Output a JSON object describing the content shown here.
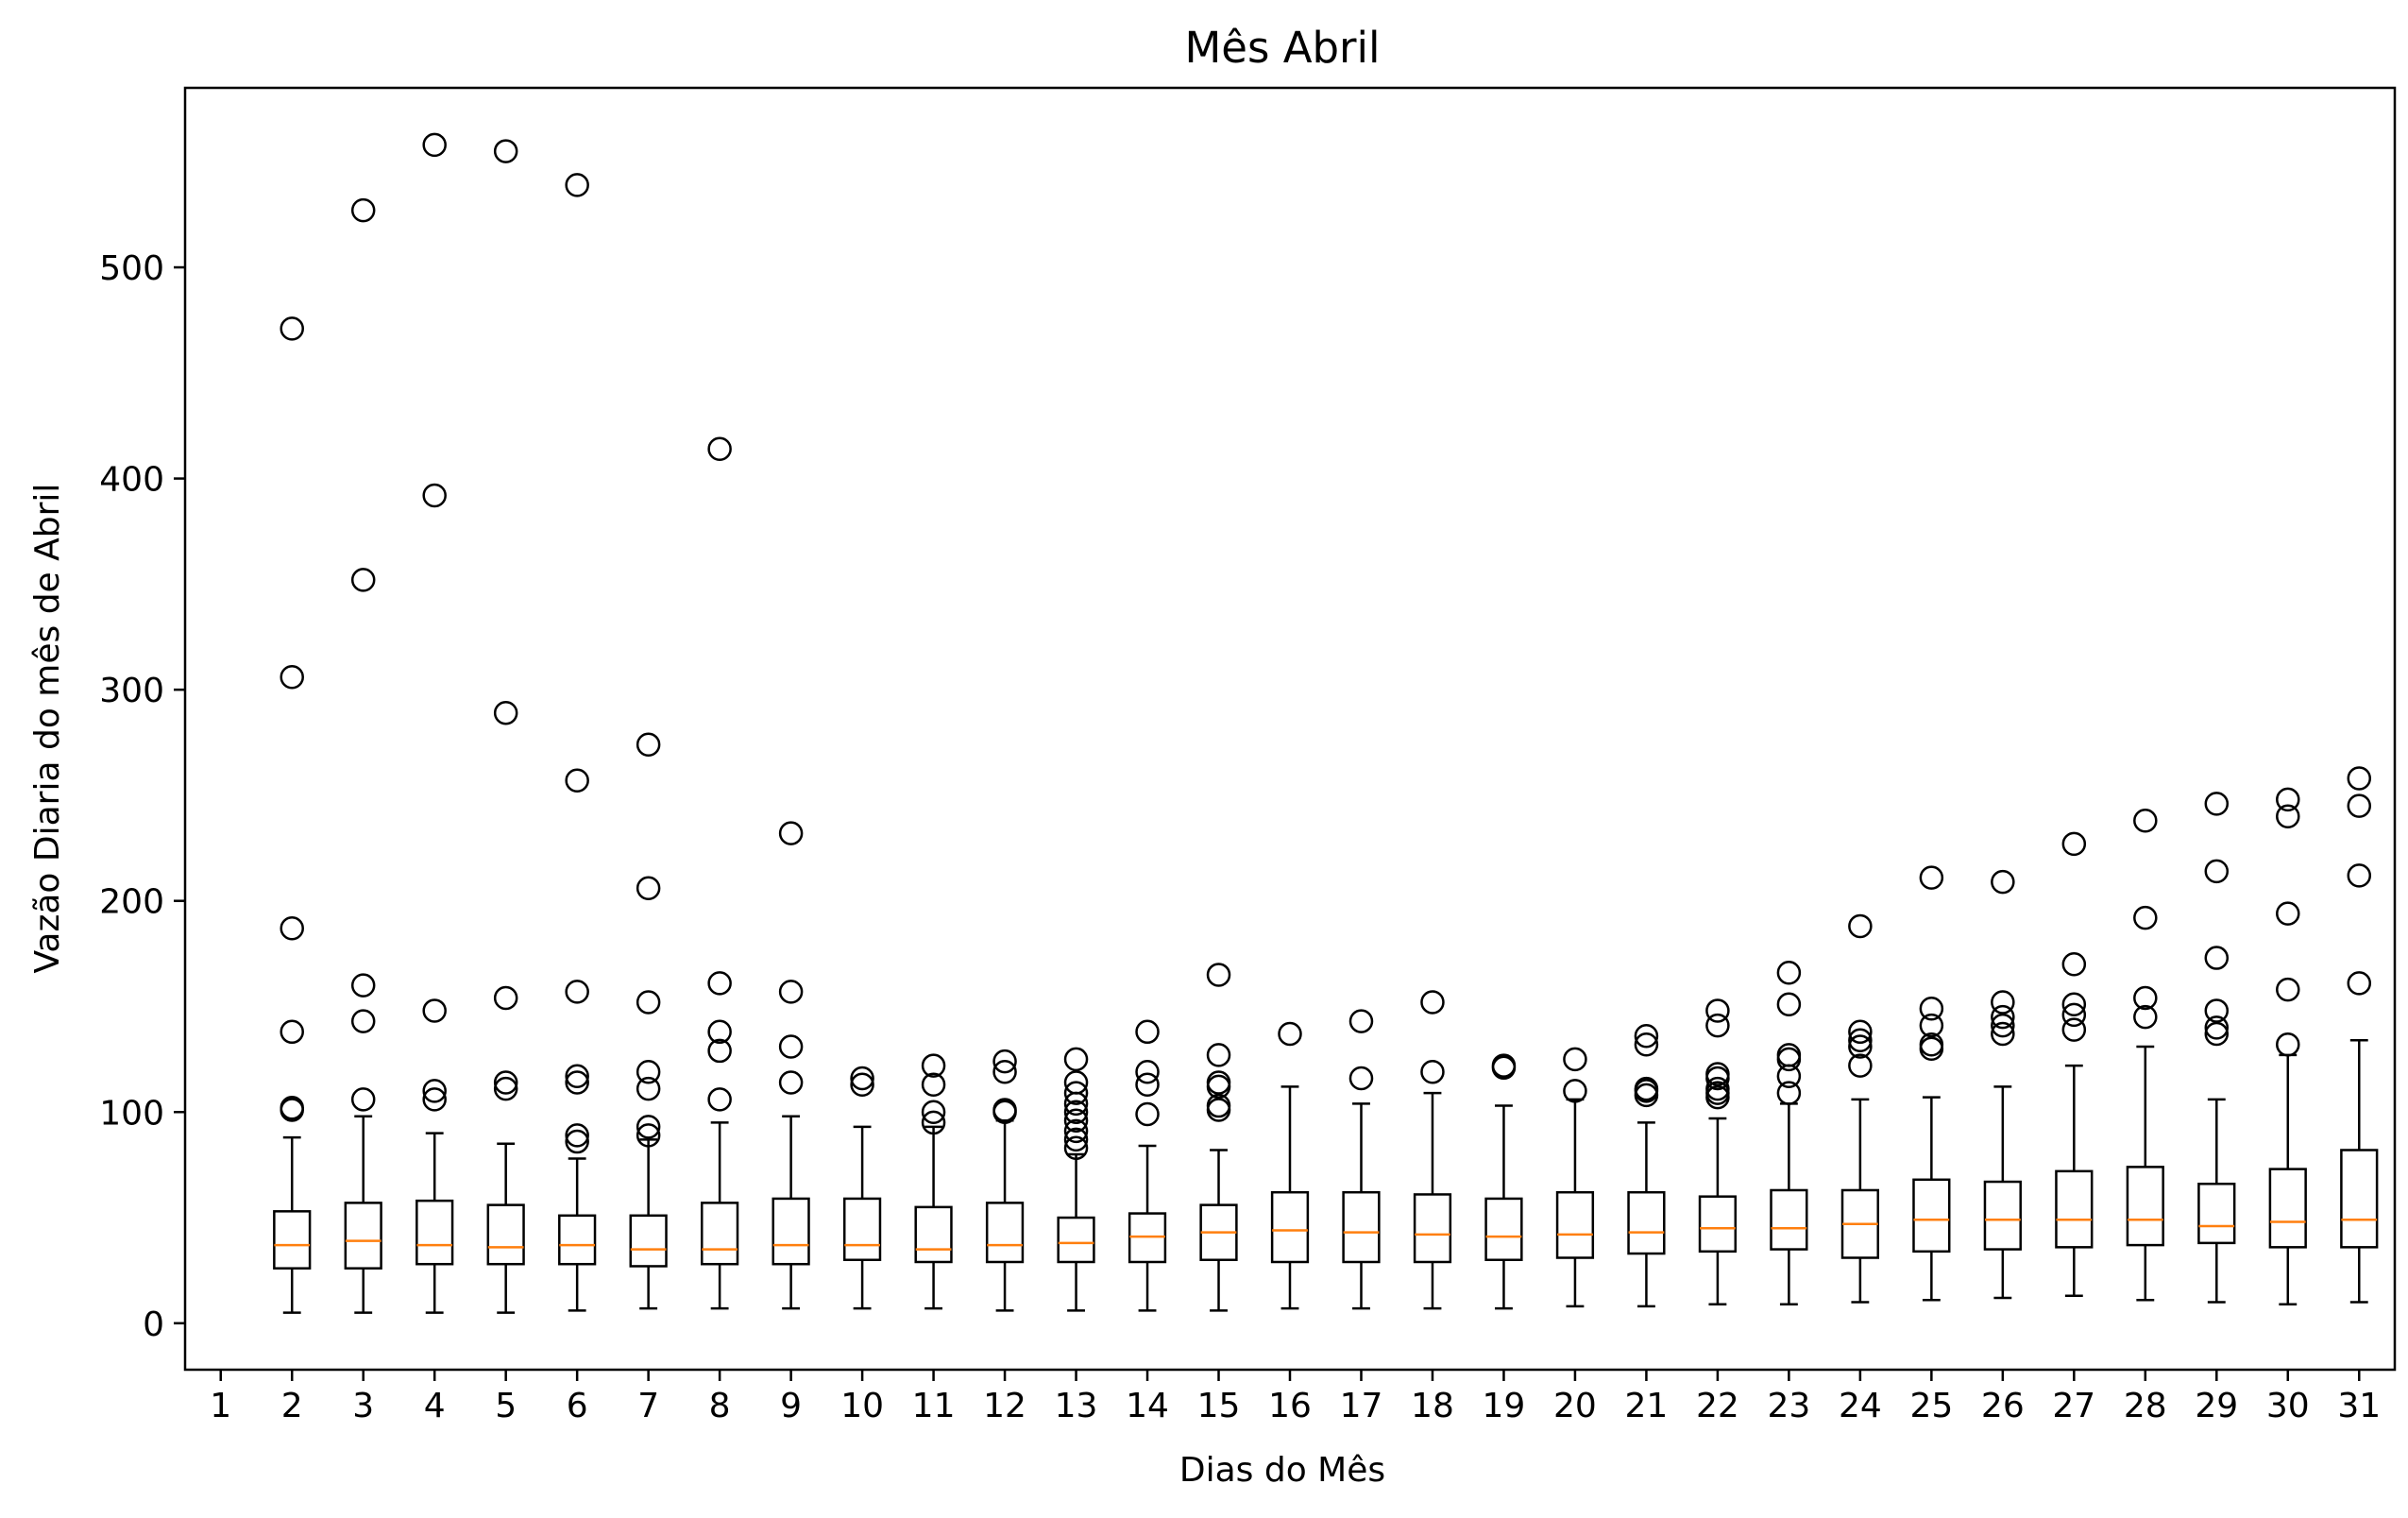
{
  "chart_data": {
    "type": "boxplot",
    "title": "Mês Abril",
    "xlabel": "Dias do Mês",
    "ylabel": "Vazão Diaria do mês de Abril",
    "xlim": [
      0.5,
      31.5
    ],
    "ylim": [
      -22,
      585
    ],
    "x_ticks": [
      "1",
      "2",
      "3",
      "4",
      "5",
      "6",
      "7",
      "8",
      "9",
      "10",
      "11",
      "12",
      "13",
      "14",
      "15",
      "16",
      "17",
      "18",
      "19",
      "20",
      "21",
      "22",
      "23",
      "24",
      "25",
      "26",
      "27",
      "28",
      "29",
      "30",
      "31"
    ],
    "y_ticks": [
      0,
      100,
      200,
      300,
      400,
      500
    ],
    "grid": false,
    "legend": "none",
    "colors": {
      "box": "#000000",
      "median": "#ff7f0e",
      "flier": "#000000"
    },
    "boxes": [
      {
        "day": 2,
        "whislo": 5,
        "q1": 26,
        "median": 37,
        "q3": 53,
        "whishi": 88,
        "fliers": [
          101,
          102,
          138,
          187,
          306,
          471
        ]
      },
      {
        "day": 3,
        "whislo": 5,
        "q1": 26,
        "median": 39,
        "q3": 57,
        "whishi": 98,
        "fliers": [
          106,
          143,
          160,
          352,
          527
        ]
      },
      {
        "day": 4,
        "whislo": 5,
        "q1": 28,
        "median": 37,
        "q3": 58,
        "whishi": 90,
        "fliers": [
          106,
          110,
          148,
          392,
          558
        ]
      },
      {
        "day": 5,
        "whislo": 5,
        "q1": 28,
        "median": 36,
        "q3": 56,
        "whishi": 85,
        "fliers": [
          111,
          114,
          154,
          289,
          555
        ]
      },
      {
        "day": 6,
        "whislo": 6,
        "q1": 28,
        "median": 37,
        "q3": 51,
        "whishi": 78,
        "fliers": [
          86,
          89,
          114,
          117,
          157,
          257,
          539
        ]
      },
      {
        "day": 7,
        "whislo": 7,
        "q1": 27,
        "median": 35,
        "q3": 51,
        "whishi": 87,
        "fliers": [
          89,
          93,
          111,
          119,
          152,
          206,
          274
        ]
      },
      {
        "day": 8,
        "whislo": 7,
        "q1": 28,
        "median": 35,
        "q3": 57,
        "whishi": 95,
        "fliers": [
          106,
          129,
          138,
          161,
          414
        ]
      },
      {
        "day": 9,
        "whislo": 7,
        "q1": 28,
        "median": 37,
        "q3": 59,
        "whishi": 98,
        "fliers": [
          114,
          131,
          157,
          232
        ]
      },
      {
        "day": 10,
        "whislo": 7,
        "q1": 30,
        "median": 37,
        "q3": 59,
        "whishi": 93,
        "fliers": [
          113,
          116
        ]
      },
      {
        "day": 11,
        "whislo": 7,
        "q1": 29,
        "median": 35,
        "q3": 55,
        "whishi": 93,
        "fliers": [
          95,
          100,
          113,
          122
        ]
      },
      {
        "day": 12,
        "whislo": 6,
        "q1": 29,
        "median": 37,
        "q3": 57,
        "whishi": 96,
        "fliers": [
          100,
          101,
          119,
          124
        ]
      },
      {
        "day": 13,
        "whislo": 6,
        "q1": 29,
        "median": 38,
        "q3": 50,
        "whishi": 80,
        "fliers": [
          83,
          87,
          91,
          96,
          100,
          104,
          109,
          114,
          125
        ]
      },
      {
        "day": 14,
        "whislo": 6,
        "q1": 29,
        "median": 41,
        "q3": 52,
        "whishi": 84,
        "fliers": [
          99,
          113,
          119,
          138
        ]
      },
      {
        "day": 15,
        "whislo": 6,
        "q1": 30,
        "median": 43,
        "q3": 56,
        "whishi": 82,
        "fliers": [
          101,
          103,
          112,
          114,
          127,
          165
        ]
      },
      {
        "day": 16,
        "whislo": 7,
        "q1": 29,
        "median": 44,
        "q3": 62,
        "whishi": 112,
        "fliers": [
          137
        ]
      },
      {
        "day": 17,
        "whislo": 7,
        "q1": 29,
        "median": 43,
        "q3": 62,
        "whishi": 104,
        "fliers": [
          116,
          143
        ]
      },
      {
        "day": 18,
        "whislo": 7,
        "q1": 29,
        "median": 42,
        "q3": 61,
        "whishi": 109,
        "fliers": [
          119,
          152
        ]
      },
      {
        "day": 19,
        "whislo": 7,
        "q1": 30,
        "median": 41,
        "q3": 59,
        "whishi": 103,
        "fliers": [
          121,
          122
        ]
      },
      {
        "day": 20,
        "whislo": 8,
        "q1": 31,
        "median": 42,
        "q3": 62,
        "whishi": 106,
        "fliers": [
          110,
          125
        ]
      },
      {
        "day": 21,
        "whislo": 8,
        "q1": 33,
        "median": 43,
        "q3": 62,
        "whishi": 95,
        "fliers": [
          108,
          110,
          111,
          132,
          136
        ]
      },
      {
        "day": 22,
        "whislo": 9,
        "q1": 34,
        "median": 45,
        "q3": 60,
        "whishi": 97,
        "fliers": [
          107,
          109,
          111,
          116,
          118,
          141,
          148
        ]
      },
      {
        "day": 23,
        "whislo": 9,
        "q1": 35,
        "median": 45,
        "q3": 63,
        "whishi": 104,
        "fliers": [
          109,
          117,
          125,
          127,
          151,
          166
        ]
      },
      {
        "day": 24,
        "whislo": 10,
        "q1": 31,
        "median": 47,
        "q3": 63,
        "whishi": 106,
        "fliers": [
          122,
          131,
          134,
          138,
          188
        ]
      },
      {
        "day": 25,
        "whislo": 11,
        "q1": 34,
        "median": 49,
        "q3": 68,
        "whishi": 107,
        "fliers": [
          130,
          132,
          141,
          149,
          211
        ]
      },
      {
        "day": 26,
        "whislo": 12,
        "q1": 35,
        "median": 49,
        "q3": 67,
        "whishi": 112,
        "fliers": [
          137,
          141,
          145,
          152,
          209
        ]
      },
      {
        "day": 27,
        "whislo": 13,
        "q1": 36,
        "median": 49,
        "q3": 72,
        "whishi": 122,
        "fliers": [
          139,
          146,
          151,
          170,
          227
        ]
      },
      {
        "day": 28,
        "whislo": 11,
        "q1": 37,
        "median": 49,
        "q3": 74,
        "whishi": 131,
        "fliers": [
          145,
          154,
          192,
          238
        ]
      },
      {
        "day": 29,
        "whislo": 10,
        "q1": 38,
        "median": 46,
        "q3": 66,
        "whishi": 106,
        "fliers": [
          137,
          140,
          148,
          173,
          214,
          246
        ]
      },
      {
        "day": 30,
        "whislo": 9,
        "q1": 36,
        "median": 48,
        "q3": 73,
        "whishi": 127,
        "fliers": [
          132,
          158,
          194,
          240,
          248
        ]
      },
      {
        "day": 31,
        "whislo": 10,
        "q1": 36,
        "median": 49,
        "q3": 82,
        "whishi": 134,
        "fliers": [
          161,
          212,
          245,
          258
        ]
      }
    ]
  }
}
